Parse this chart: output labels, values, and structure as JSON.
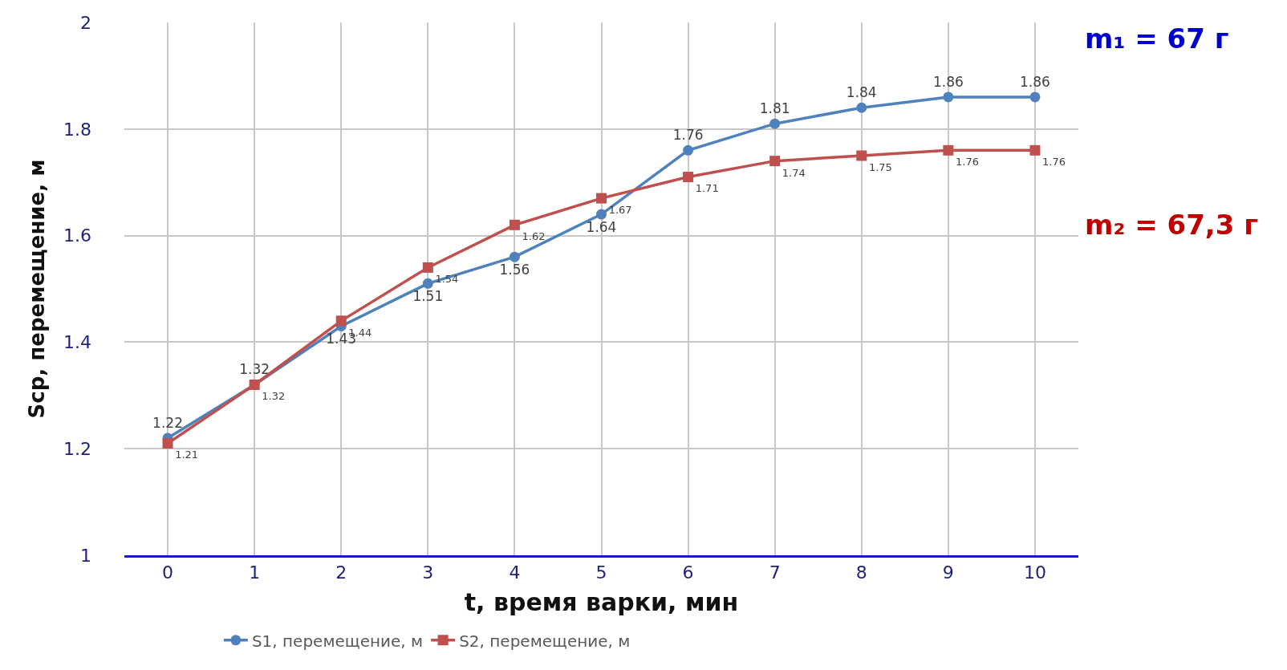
{
  "chart_data": {
    "type": "line",
    "xlabel": "t, время варки, мин",
    "ylabel": "Sср, перемещение, м",
    "categories": [
      "0",
      "1",
      "2",
      "3",
      "4",
      "5",
      "6",
      "7",
      "8",
      "9",
      "10"
    ],
    "series": [
      {
        "name": "S1, перемещение, м",
        "color": "#4f81bd",
        "marker": "circle",
        "values": [
          1.22,
          1.32,
          1.43,
          1.51,
          1.56,
          1.64,
          1.76,
          1.81,
          1.84,
          1.86,
          1.86
        ]
      },
      {
        "name": "S2, перемещение, м",
        "color": "#c0504d",
        "marker": "square",
        "values": [
          1.21,
          1.32,
          1.44,
          1.54,
          1.62,
          1.67,
          1.71,
          1.74,
          1.75,
          1.76,
          1.76
        ]
      }
    ],
    "ylim": [
      1,
      2
    ],
    "yticks": [
      1,
      1.2,
      1.4,
      1.6,
      1.8,
      2
    ],
    "grid": true,
    "legend": "bottom left",
    "data_labels": true,
    "line_style": "solid",
    "annotations": [
      "m₁ = 67 г",
      "m₂ = 67,3 г"
    ]
  }
}
